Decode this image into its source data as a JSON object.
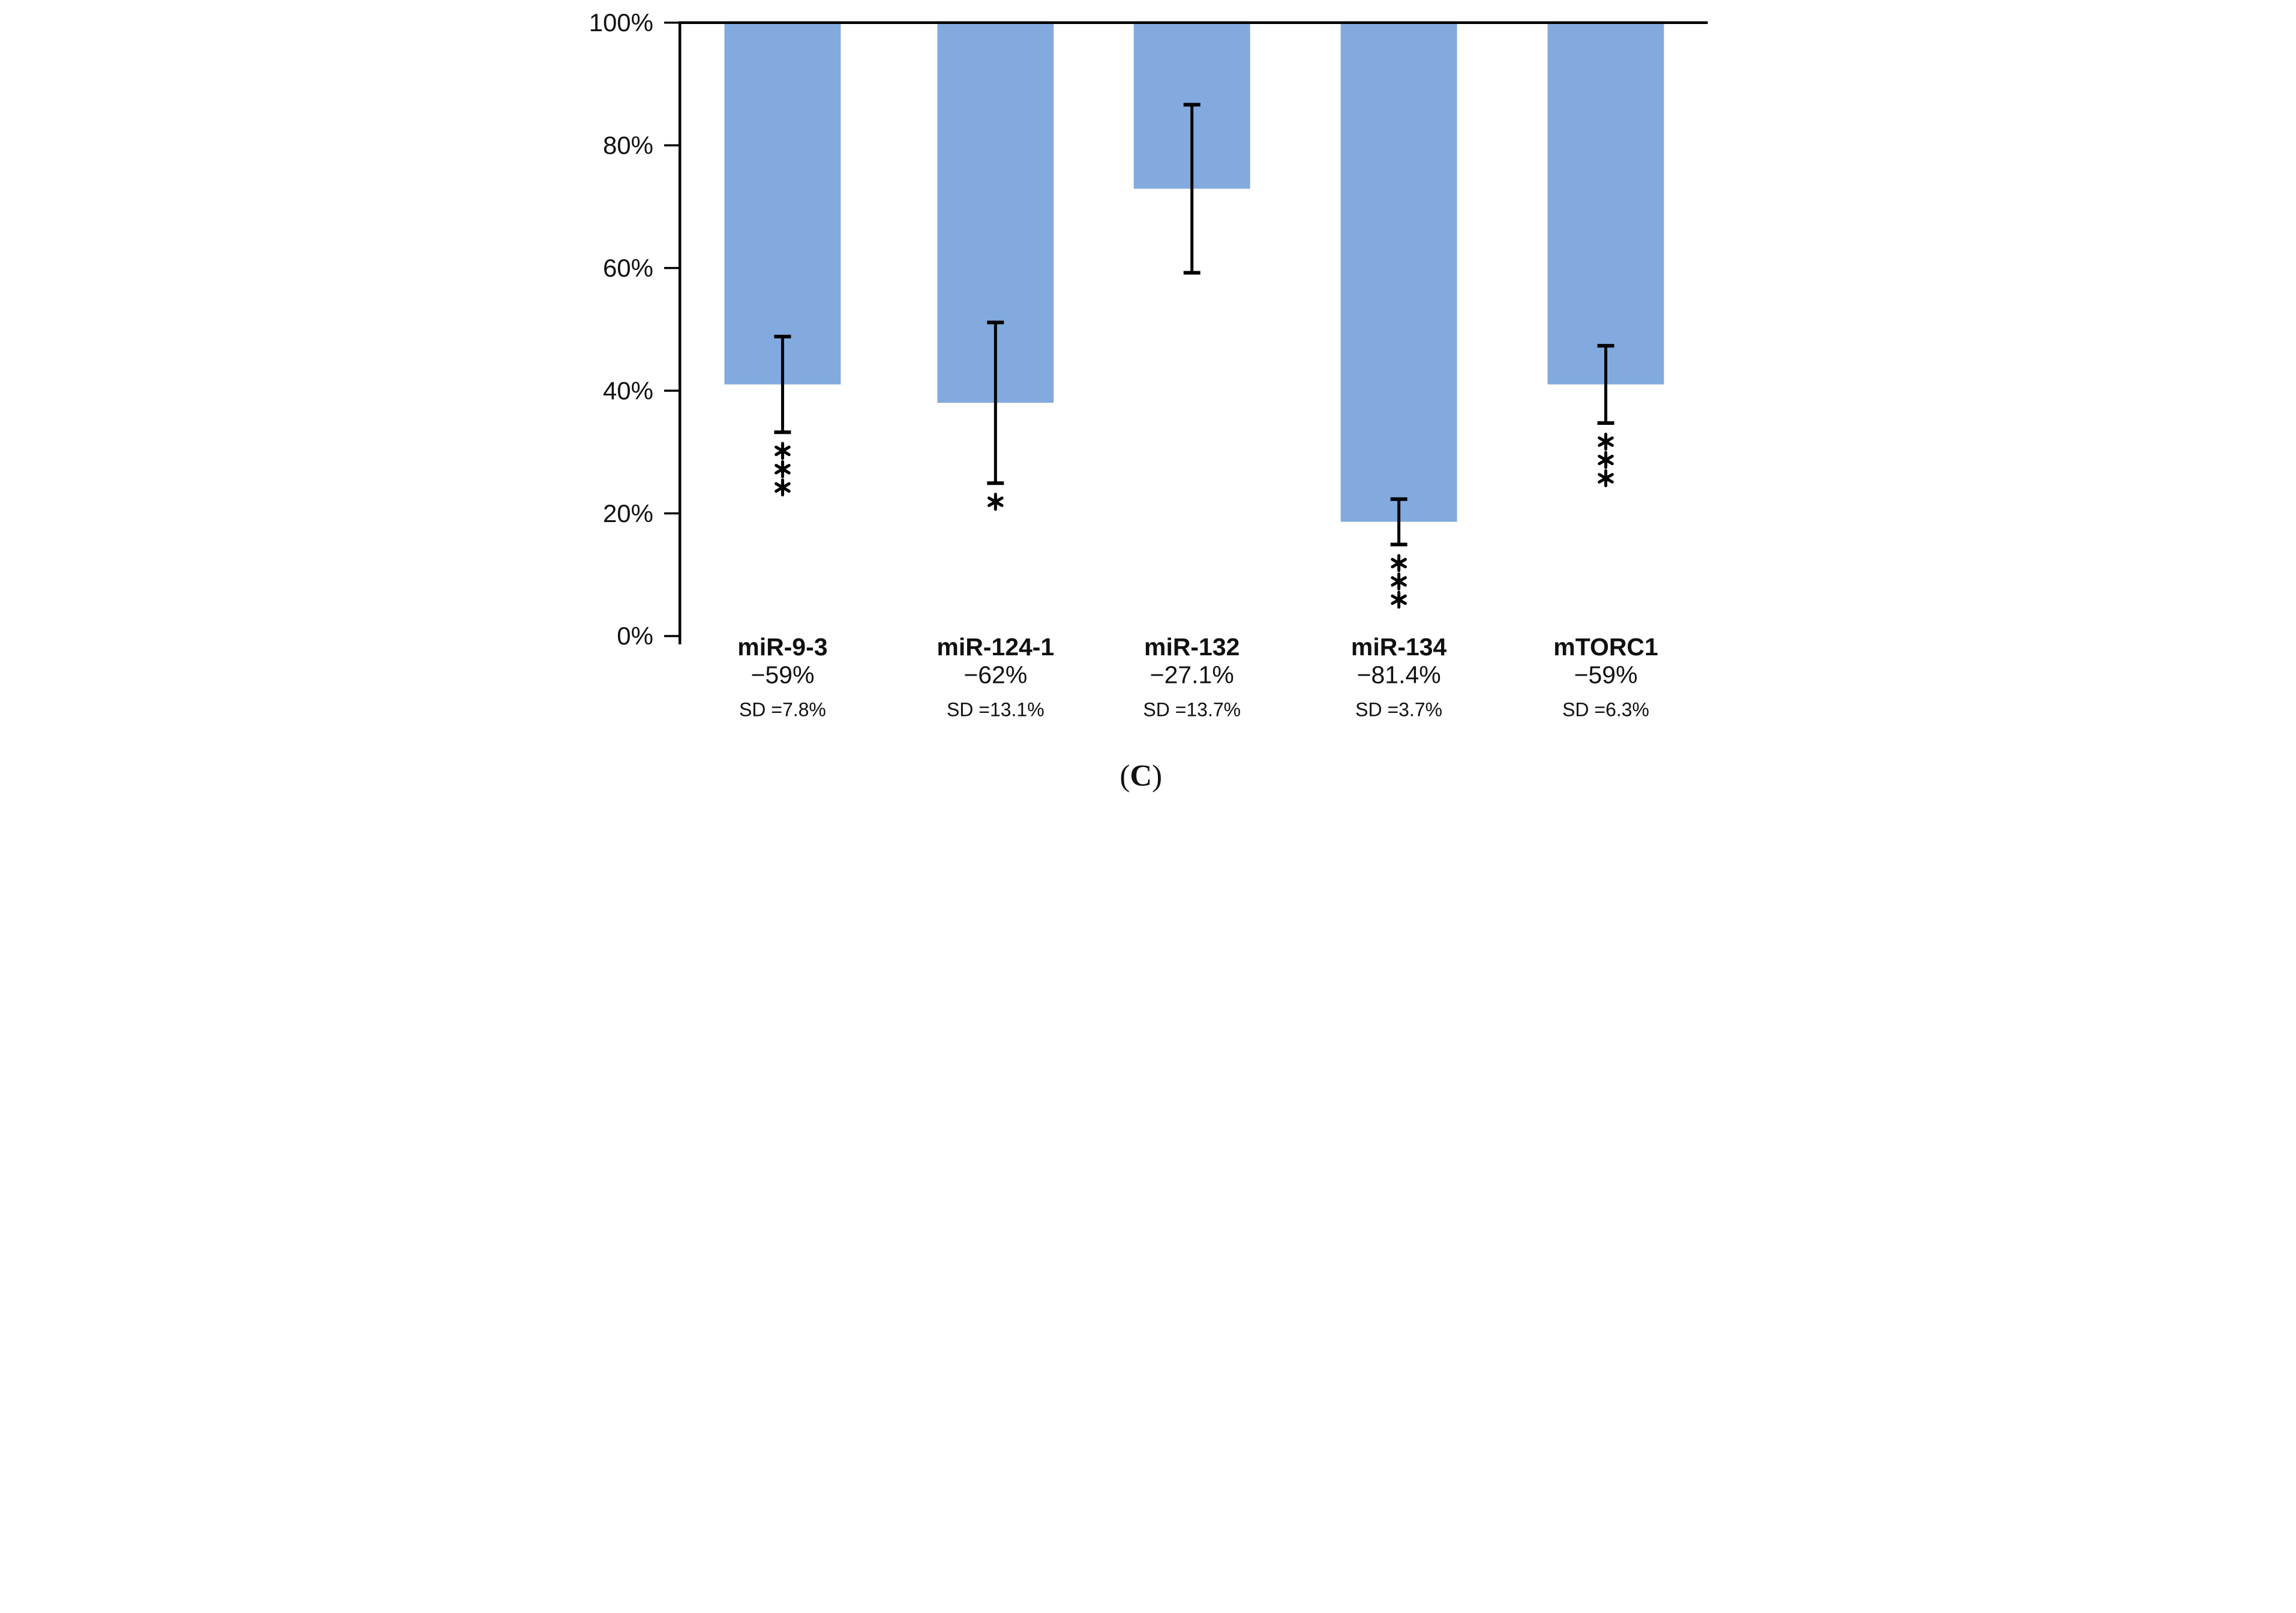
{
  "caption": {
    "open": "(",
    "letter": "C",
    "close": ")"
  },
  "chart_data": {
    "type": "bar",
    "subtype": "drop-bars-from-100-percent",
    "title": "",
    "xlabel": "",
    "ylabel": "",
    "ylim": [
      0,
      100
    ],
    "grid": false,
    "legend": false,
    "categories": [
      "miR-9-3",
      "miR-124-1",
      "miR-132",
      "miR-134",
      "mTORC1"
    ],
    "values": [
      41,
      38,
      72.9,
      18.6,
      41
    ],
    "sd": [
      7.8,
      13.1,
      13.7,
      3.7,
      6.3
    ],
    "change_labels": [
      "−59%",
      "−62%",
      "−27.1%",
      "−81.4%",
      "−59%"
    ],
    "sd_labels": [
      "SD =7.8%",
      "SD =13.1%",
      "SD =13.7%",
      "SD =3.7%",
      "SD =6.3%"
    ],
    "significance": [
      "***",
      "*",
      "",
      "***",
      "***"
    ],
    "y_ticks": [
      "0%",
      "20%",
      "40%",
      "60%",
      "80%",
      "100%"
    ],
    "bar_color": "#82aade",
    "axis_color": "#000000",
    "text_color": "#111111"
  }
}
